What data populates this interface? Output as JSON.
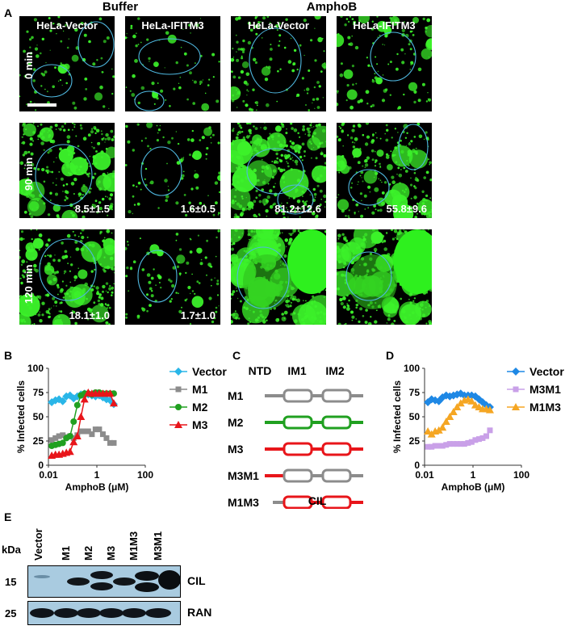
{
  "panelA": {
    "letter": "A",
    "group_headers": [
      "Buffer",
      "AmphoB"
    ],
    "columns": [
      "HeLa-Vector",
      "HeLa-IFITM3",
      "HeLa-Vector",
      "HeLa-IFITM3"
    ],
    "rows": [
      "0 min",
      "90 min",
      "120 min"
    ],
    "values": [
      [
        "",
        "",
        "",
        ""
      ],
      [
        "8.5±1.5",
        "1.6±0.5",
        "81.2±12.6",
        "55.8±9.6"
      ],
      [
        "18.1±1.0",
        "1.7±1.0",
        "",
        ""
      ]
    ]
  },
  "panelB": {
    "letter": "B",
    "chart_data": {
      "type": "line",
      "xlabel": "AmphoB (μM)",
      "ylabel": "% Infected cells",
      "xscale": "log",
      "xlim": [
        0.01,
        100
      ],
      "ylim": [
        0,
        100
      ],
      "xticks": [
        "0.01",
        "1",
        "100"
      ],
      "yticks": [
        "0",
        "25",
        "50",
        "75",
        "100"
      ],
      "legend": "right",
      "x": [
        0.0137,
        0.0195,
        0.0274,
        0.039,
        0.055,
        0.078,
        0.11,
        0.156,
        0.22,
        0.31,
        0.44,
        0.625,
        0.88,
        1.25,
        1.77,
        2.5,
        3.54,
        5.0
      ],
      "series": [
        {
          "name": "Vector",
          "color": "#29b6e8",
          "marker": "diamond",
          "values": [
            65,
            67,
            68,
            66,
            71,
            72,
            69,
            71,
            73,
            74,
            73,
            72,
            71,
            72,
            70,
            68,
            67,
            63
          ]
        },
        {
          "name": "M1",
          "color": "#8c8c8c",
          "marker": "square",
          "values": [
            26,
            28,
            30,
            31,
            29,
            30,
            28,
            31,
            35,
            35,
            35,
            32,
            37,
            37,
            32,
            28,
            23,
            23
          ]
        },
        {
          "name": "M2",
          "color": "#20a020",
          "marker": "circle",
          "values": [
            20,
            21,
            22,
            23,
            28,
            30,
            45,
            62,
            72,
            74,
            74,
            73,
            75,
            75,
            74,
            74,
            74,
            74
          ]
        },
        {
          "name": "M3",
          "color": "#e8151a",
          "marker": "triangle",
          "values": [
            10,
            11,
            11,
            12,
            13,
            14,
            24,
            30,
            50,
            68,
            75,
            74,
            74,
            74,
            74,
            74,
            74,
            64
          ]
        }
      ]
    }
  },
  "panelC": {
    "letter": "C",
    "domain_labels": [
      "NTD",
      "IM1",
      "IM2"
    ],
    "bottom_label": "CIL",
    "constructs": [
      {
        "name": "M1",
        "ntd": "#8c8c8c",
        "box1": "#8c8c8c",
        "box2": "#8c8c8c",
        "tail": "#8c8c8c"
      },
      {
        "name": "M2",
        "ntd": "#20a020",
        "box1": "#20a020",
        "box2": "#20a020",
        "tail": "#20a020"
      },
      {
        "name": "M3",
        "ntd": "#e8151a",
        "box1": "#e8151a",
        "box2": "#e8151a",
        "tail": "#e8151a"
      },
      {
        "name": "M3M1",
        "ntd": "#e8151a",
        "box1": "#8c8c8c",
        "box2": "#8c8c8c",
        "tail": "#8c8c8c"
      },
      {
        "name": "M1M3",
        "ntd": "#8c8c8c",
        "box1": "#e8151a",
        "box2": "#e8151a",
        "tail": "#e8151a"
      }
    ]
  },
  "panelD": {
    "letter": "D",
    "chart_data": {
      "type": "line",
      "xlabel": "AmphoB (μM)",
      "ylabel": "% Infected cells",
      "xscale": "log",
      "xlim": [
        0.01,
        100
      ],
      "ylim": [
        0,
        100
      ],
      "xticks": [
        "0.01",
        "1",
        "100"
      ],
      "yticks": [
        "0",
        "25",
        "50",
        "75",
        "100"
      ],
      "legend": "right",
      "x": [
        0.0137,
        0.0195,
        0.0274,
        0.039,
        0.055,
        0.078,
        0.11,
        0.156,
        0.22,
        0.31,
        0.44,
        0.625,
        0.88,
        1.25,
        1.77,
        2.5,
        3.54,
        5.0
      ],
      "series": [
        {
          "name": "Vector",
          "color": "#1e88e5",
          "marker": "diamond",
          "values": [
            65,
            68,
            67,
            66,
            70,
            72,
            71,
            72,
            73,
            74,
            72,
            72,
            72,
            71,
            68,
            65,
            62,
            60
          ]
        },
        {
          "name": "M3M1",
          "color": "#c9a0e8",
          "marker": "square",
          "values": [
            19,
            19,
            20,
            20,
            20,
            21,
            22,
            22,
            22,
            22,
            22,
            23,
            24,
            26,
            27,
            28,
            30,
            36
          ]
        },
        {
          "name": "M1M3",
          "color": "#f5a623",
          "marker": "triangle",
          "values": [
            35,
            32,
            35,
            36,
            39,
            45,
            50,
            55,
            60,
            64,
            67,
            68,
            66,
            62,
            60,
            58,
            58,
            57
          ]
        }
      ]
    }
  },
  "panelE": {
    "letter": "E",
    "lanes": [
      "Vector",
      "M1",
      "M2",
      "M3",
      "M1M3",
      "M3M1"
    ],
    "kda_label": "kDa",
    "markers": [
      "15",
      "25"
    ],
    "blot_labels": [
      "CIL",
      "RAN"
    ]
  }
}
